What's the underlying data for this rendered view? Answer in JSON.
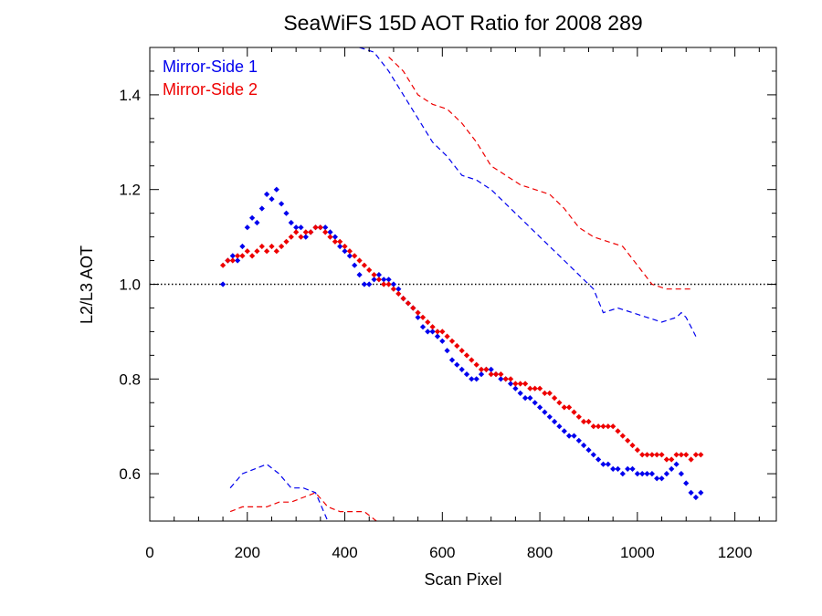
{
  "chart_data": {
    "type": "scatter",
    "title": "SeaWiFS 15D AOT Ratio for 2008 289",
    "xlabel": "Scan Pixel",
    "ylabel": "L2/L3 AOT",
    "xlim": [
      0,
      1285
    ],
    "ylim": [
      0.5,
      1.5
    ],
    "xticks": [
      0,
      200,
      400,
      600,
      800,
      1000,
      1200
    ],
    "yticks": [
      0.6,
      0.8,
      1.0,
      1.2,
      1.4
    ],
    "xtick_labels": [
      "0",
      "200",
      "400",
      "600",
      "800",
      "1000",
      "1200"
    ],
    "ytick_labels": [
      "0.6",
      "0.8",
      "1.0",
      "1.2",
      "1.4"
    ],
    "legend_position": "top-left",
    "reference_line": {
      "y": 1.0,
      "style": "dotted",
      "color": "#000000"
    },
    "series": [
      {
        "name": "Mirror-Side 1",
        "color": "#0000ee",
        "points": {
          "x": [
            150,
            160,
            170,
            180,
            190,
            200,
            210,
            220,
            230,
            240,
            250,
            260,
            270,
            280,
            290,
            300,
            310,
            320,
            330,
            340,
            350,
            360,
            370,
            380,
            390,
            400,
            410,
            420,
            430,
            440,
            450,
            460,
            470,
            480,
            490,
            500,
            510,
            520,
            530,
            540,
            550,
            560,
            570,
            580,
            590,
            600,
            610,
            620,
            630,
            640,
            650,
            660,
            670,
            680,
            690,
            700,
            710,
            720,
            730,
            740,
            750,
            760,
            770,
            780,
            790,
            800,
            810,
            820,
            830,
            840,
            850,
            860,
            870,
            880,
            890,
            900,
            910,
            920,
            930,
            940,
            950,
            960,
            970,
            980,
            990,
            1000,
            1010,
            1020,
            1030,
            1040,
            1050,
            1060,
            1070,
            1080,
            1090,
            1100,
            1110,
            1120,
            1130
          ],
          "y": [
            1.0,
            1.05,
            1.06,
            1.05,
            1.08,
            1.12,
            1.14,
            1.13,
            1.16,
            1.19,
            1.18,
            1.2,
            1.17,
            1.15,
            1.13,
            1.12,
            1.12,
            1.1,
            1.11,
            1.12,
            1.12,
            1.12,
            1.11,
            1.1,
            1.08,
            1.07,
            1.06,
            1.04,
            1.02,
            1.0,
            1.0,
            1.01,
            1.02,
            1.01,
            1.01,
            1.0,
            0.99,
            0.97,
            0.96,
            0.95,
            0.93,
            0.91,
            0.9,
            0.9,
            0.89,
            0.88,
            0.86,
            0.84,
            0.83,
            0.82,
            0.81,
            0.8,
            0.8,
            0.81,
            0.82,
            0.82,
            0.81,
            0.8,
            0.8,
            0.79,
            0.78,
            0.77,
            0.76,
            0.76,
            0.75,
            0.74,
            0.73,
            0.72,
            0.71,
            0.7,
            0.69,
            0.68,
            0.68,
            0.67,
            0.66,
            0.65,
            0.64,
            0.63,
            0.62,
            0.62,
            0.61,
            0.61,
            0.6,
            0.61,
            0.61,
            0.6,
            0.6,
            0.6,
            0.6,
            0.59,
            0.59,
            0.6,
            0.61,
            0.62,
            0.6,
            0.58,
            0.56,
            0.55,
            0.56
          ]
        },
        "upper_bound": {
          "x": [
            430,
            460,
            490,
            520,
            550,
            580,
            610,
            640,
            670,
            700,
            730,
            760,
            790,
            820,
            850,
            880,
            910,
            930,
            960,
            990,
            1020,
            1050,
            1080,
            1090,
            1100,
            1110,
            1120
          ],
          "y": [
            1.5,
            1.49,
            1.45,
            1.4,
            1.35,
            1.3,
            1.27,
            1.23,
            1.22,
            1.2,
            1.17,
            1.14,
            1.11,
            1.08,
            1.05,
            1.02,
            0.99,
            0.94,
            0.95,
            0.94,
            0.93,
            0.92,
            0.93,
            0.94,
            0.93,
            0.91,
            0.89
          ]
        },
        "lower_bound": {
          "x": [
            165,
            190,
            215,
            240,
            265,
            290,
            315,
            340,
            365
          ],
          "y": [
            0.57,
            0.6,
            0.61,
            0.62,
            0.6,
            0.57,
            0.57,
            0.56,
            0.5
          ]
        }
      },
      {
        "name": "Mirror-Side 2",
        "color": "#ee0000",
        "points": {
          "x": [
            150,
            160,
            170,
            180,
            190,
            200,
            210,
            220,
            230,
            240,
            250,
            260,
            270,
            280,
            290,
            300,
            310,
            320,
            330,
            340,
            350,
            360,
            370,
            380,
            390,
            400,
            410,
            420,
            430,
            440,
            450,
            460,
            470,
            480,
            490,
            500,
            510,
            520,
            530,
            540,
            550,
            560,
            570,
            580,
            590,
            600,
            610,
            620,
            630,
            640,
            650,
            660,
            670,
            680,
            690,
            700,
            710,
            720,
            730,
            740,
            750,
            760,
            770,
            780,
            790,
            800,
            810,
            820,
            830,
            840,
            850,
            860,
            870,
            880,
            890,
            900,
            910,
            920,
            930,
            940,
            950,
            960,
            970,
            980,
            990,
            1000,
            1010,
            1020,
            1030,
            1040,
            1050,
            1060,
            1070,
            1080,
            1090,
            1100,
            1110,
            1120,
            1130
          ],
          "y": [
            1.04,
            1.05,
            1.05,
            1.06,
            1.06,
            1.07,
            1.06,
            1.07,
            1.08,
            1.07,
            1.08,
            1.07,
            1.08,
            1.09,
            1.1,
            1.11,
            1.1,
            1.11,
            1.11,
            1.12,
            1.12,
            1.11,
            1.1,
            1.09,
            1.09,
            1.08,
            1.07,
            1.06,
            1.05,
            1.04,
            1.03,
            1.02,
            1.01,
            1.0,
            1.0,
            0.99,
            0.98,
            0.97,
            0.96,
            0.95,
            0.94,
            0.93,
            0.92,
            0.91,
            0.9,
            0.9,
            0.89,
            0.88,
            0.87,
            0.86,
            0.85,
            0.84,
            0.83,
            0.82,
            0.82,
            0.81,
            0.81,
            0.81,
            0.8,
            0.8,
            0.79,
            0.79,
            0.79,
            0.78,
            0.78,
            0.78,
            0.77,
            0.77,
            0.76,
            0.75,
            0.74,
            0.74,
            0.73,
            0.72,
            0.71,
            0.71,
            0.7,
            0.7,
            0.7,
            0.7,
            0.7,
            0.69,
            0.68,
            0.67,
            0.66,
            0.65,
            0.64,
            0.64,
            0.64,
            0.64,
            0.64,
            0.63,
            0.63,
            0.64,
            0.64,
            0.64,
            0.63,
            0.64,
            0.64
          ]
        },
        "upper_bound": {
          "x": [
            490,
            520,
            550,
            580,
            610,
            640,
            670,
            700,
            730,
            760,
            790,
            820,
            850,
            880,
            910,
            940,
            970,
            1000,
            1030,
            1060,
            1090,
            1110
          ],
          "y": [
            1.48,
            1.45,
            1.4,
            1.38,
            1.37,
            1.34,
            1.3,
            1.25,
            1.23,
            1.21,
            1.2,
            1.19,
            1.16,
            1.12,
            1.1,
            1.09,
            1.08,
            1.04,
            1.0,
            0.99,
            0.99,
            0.99
          ]
        },
        "lower_bound": {
          "x": [
            165,
            190,
            215,
            240,
            265,
            290,
            315,
            340,
            365,
            390,
            415,
            440,
            465
          ],
          "y": [
            0.52,
            0.53,
            0.53,
            0.53,
            0.54,
            0.54,
            0.55,
            0.56,
            0.53,
            0.52,
            0.52,
            0.52,
            0.5
          ]
        }
      }
    ]
  }
}
